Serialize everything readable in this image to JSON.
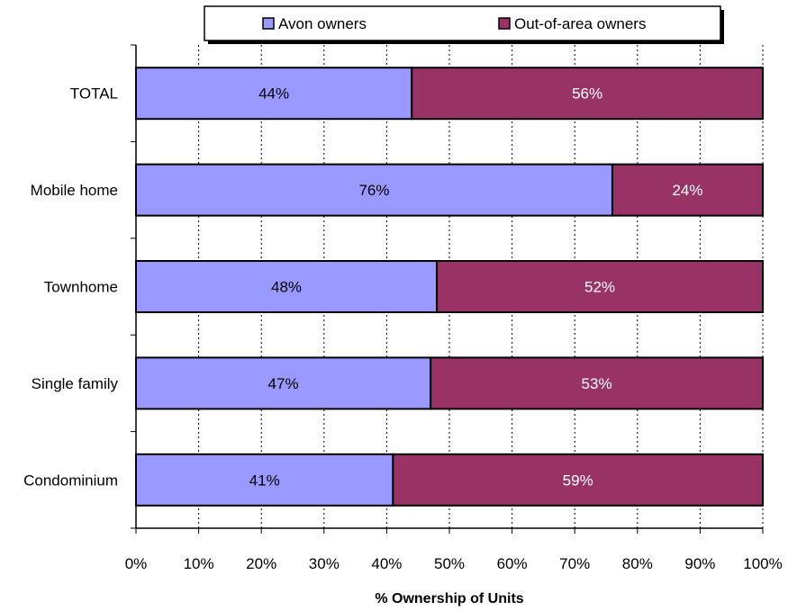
{
  "chart_data": {
    "type": "bar",
    "orientation": "horizontal",
    "stacked": true,
    "categories": [
      "TOTAL",
      "Mobile home",
      "Townhome",
      "Single family",
      "Condominium"
    ],
    "series": [
      {
        "name": "Avon owners",
        "values": [
          44,
          76,
          48,
          47,
          41
        ],
        "labels": [
          "44%",
          "76%",
          "48%",
          "47%",
          "41%"
        ],
        "color": "#9999ff",
        "label_color": "#000000"
      },
      {
        "name": "Out-of-area owners",
        "values": [
          56,
          24,
          52,
          53,
          59
        ],
        "labels": [
          "56%",
          "24%",
          "52%",
          "53%",
          "59%"
        ],
        "color": "#993366",
        "label_color": "#ffffff"
      }
    ],
    "xlabel": "% Ownership of Units",
    "xlim": [
      0,
      100
    ],
    "x_ticks": [
      0,
      10,
      20,
      30,
      40,
      50,
      60,
      70,
      80,
      90,
      100
    ],
    "x_tick_labels": [
      "0%",
      "10%",
      "20%",
      "30%",
      "40%",
      "50%",
      "60%",
      "70%",
      "80%",
      "90%",
      "100%"
    ],
    "grid": "vertical dashed",
    "legend_position": "top"
  }
}
